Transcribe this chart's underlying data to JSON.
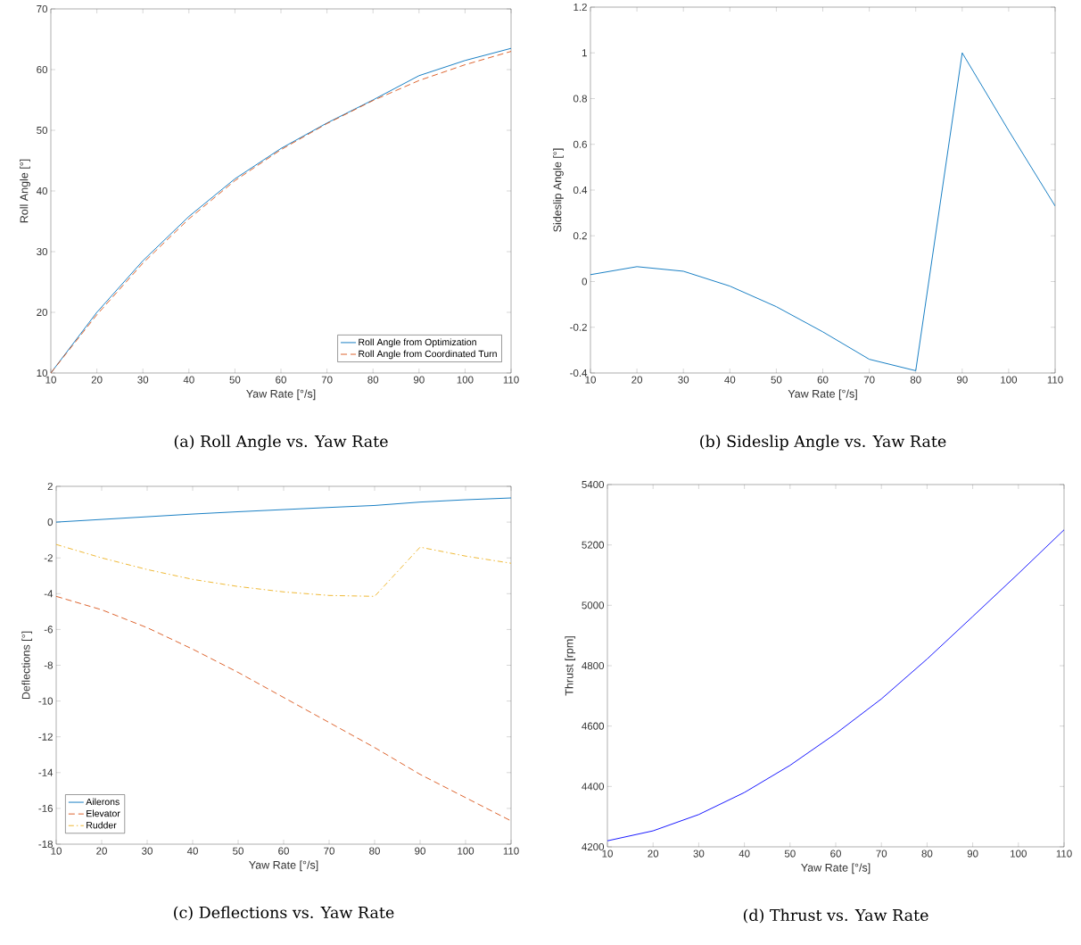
{
  "chart_data": [
    {
      "type": "line",
      "title": "(a) Roll Angle vs. Yaw Rate",
      "xlabel": "Yaw Rate [°/s]",
      "ylabel": "Roll Angle [°]",
      "x": [
        10,
        20,
        30,
        40,
        50,
        60,
        70,
        80,
        90,
        100,
        110
      ],
      "xlim": [
        10,
        110
      ],
      "ylim": [
        10,
        70
      ],
      "xticks": [
        10,
        20,
        30,
        40,
        50,
        60,
        70,
        80,
        90,
        100,
        110
      ],
      "yticks": [
        10,
        20,
        30,
        40,
        50,
        60,
        70
      ],
      "legend": "bottom right",
      "series": [
        {
          "name": "Roll Angle from Optimization",
          "color": "#0072bd",
          "line_style": "solid",
          "values": [
            10,
            20,
            28.5,
            35.8,
            42,
            47,
            51.2,
            55,
            59,
            61.5,
            63.5
          ]
        },
        {
          "name": "Roll Angle from Coordinated Turn",
          "color": "#d95319",
          "line_style": "dashed",
          "values": [
            10,
            19.6,
            28.1,
            35.4,
            41.7,
            46.8,
            51.1,
            54.9,
            58.2,
            60.8,
            63
          ]
        }
      ]
    },
    {
      "type": "line",
      "title": "(b) Sideslip Angle vs. Yaw Rate",
      "xlabel": "Yaw Rate [°/s]",
      "ylabel": "Sideslip Angle [°]",
      "x": [
        10,
        20,
        30,
        40,
        50,
        60,
        70,
        80,
        90,
        100,
        110
      ],
      "xlim": [
        10,
        110
      ],
      "ylim": [
        -0.4,
        1.2
      ],
      "xticks": [
        10,
        20,
        30,
        40,
        50,
        60,
        70,
        80,
        90,
        100,
        110
      ],
      "yticks": [
        -0.4,
        -0.2,
        0,
        0.2,
        0.4,
        0.6,
        0.8,
        1,
        1.2
      ],
      "color": "#0072bd",
      "values": [
        0.03,
        0.065,
        0.045,
        -0.02,
        -0.11,
        -0.22,
        -0.34,
        -0.39,
        1.0,
        0.66,
        0.33
      ]
    },
    {
      "type": "line",
      "title": "(c) Deflections vs. Yaw Rate",
      "xlabel": "Yaw Rate [°/s]",
      "ylabel": "Deflections [°]",
      "x": [
        10,
        20,
        30,
        40,
        50,
        60,
        70,
        80,
        90,
        100,
        110
      ],
      "xlim": [
        10,
        110
      ],
      "ylim": [
        -18,
        2
      ],
      "xticks": [
        10,
        20,
        30,
        40,
        50,
        60,
        70,
        80,
        90,
        100,
        110
      ],
      "yticks": [
        -18,
        -16,
        -14,
        -12,
        -10,
        -8,
        -6,
        -4,
        -2,
        0,
        2
      ],
      "legend": "bottom left",
      "series": [
        {
          "name": "Ailerons",
          "color": "#0072bd",
          "line_style": "solid",
          "values": [
            0,
            0.15,
            0.3,
            0.45,
            0.58,
            0.7,
            0.82,
            0.93,
            1.12,
            1.25,
            1.35
          ]
        },
        {
          "name": "Elevator",
          "color": "#d95319",
          "line_style": "dashed",
          "values": [
            -4.15,
            -4.9,
            -5.9,
            -7.1,
            -8.4,
            -9.8,
            -11.2,
            -12.6,
            -14.1,
            -15.4,
            -16.7
          ]
        },
        {
          "name": "Rudder",
          "color": "#edb120",
          "line_style": "dashdot",
          "values": [
            -1.25,
            -2.0,
            -2.65,
            -3.2,
            -3.6,
            -3.9,
            -4.1,
            -4.15,
            -1.4,
            -1.9,
            -2.3
          ]
        }
      ]
    },
    {
      "type": "line",
      "title": "(d) Thrust vs. Yaw Rate",
      "xlabel": "Yaw Rate [°/s]",
      "ylabel": "Thrust [rpm]",
      "x": [
        10,
        20,
        30,
        40,
        50,
        60,
        70,
        80,
        90,
        100,
        110
      ],
      "xlim": [
        10,
        110
      ],
      "ylim": [
        4200,
        5400
      ],
      "xticks": [
        10,
        20,
        30,
        40,
        50,
        60,
        70,
        80,
        90,
        100,
        110
      ],
      "yticks": [
        4200,
        4400,
        4600,
        4800,
        5000,
        5200,
        5400
      ],
      "color": "#0000ff",
      "values": [
        4220,
        4253,
        4307,
        4380,
        4470,
        4575,
        4690,
        4822,
        4963,
        5105,
        5250
      ]
    }
  ]
}
